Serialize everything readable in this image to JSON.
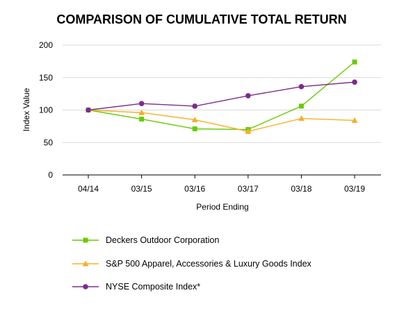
{
  "chart_data": {
    "type": "line",
    "title": "COMPARISON OF CUMULATIVE TOTAL RETURN",
    "xlabel": "Period Ending",
    "ylabel": "Index Value",
    "categories": [
      "04/14",
      "03/15",
      "03/16",
      "03/17",
      "03/18",
      "03/19"
    ],
    "ylim": [
      0,
      200
    ],
    "yticks": [
      0,
      50,
      100,
      150,
      200
    ],
    "grid": true,
    "legend_position": "bottom",
    "series": [
      {
        "name": "Deckers Outdoor Corporation",
        "values": [
          100,
          86,
          71,
          70,
          106,
          174
        ],
        "color": "#66cc00",
        "marker": "square"
      },
      {
        "name": "S&P 500 Apparel, Accessories & Luxury Goods Index",
        "values": [
          100,
          96,
          85,
          67,
          87,
          84
        ],
        "color": "#f5b027",
        "marker": "triangle"
      },
      {
        "name": "NYSE Composite Index*",
        "values": [
          100,
          110,
          106,
          122,
          136,
          143
        ],
        "color": "#7b2c8c",
        "marker": "circle"
      }
    ]
  }
}
